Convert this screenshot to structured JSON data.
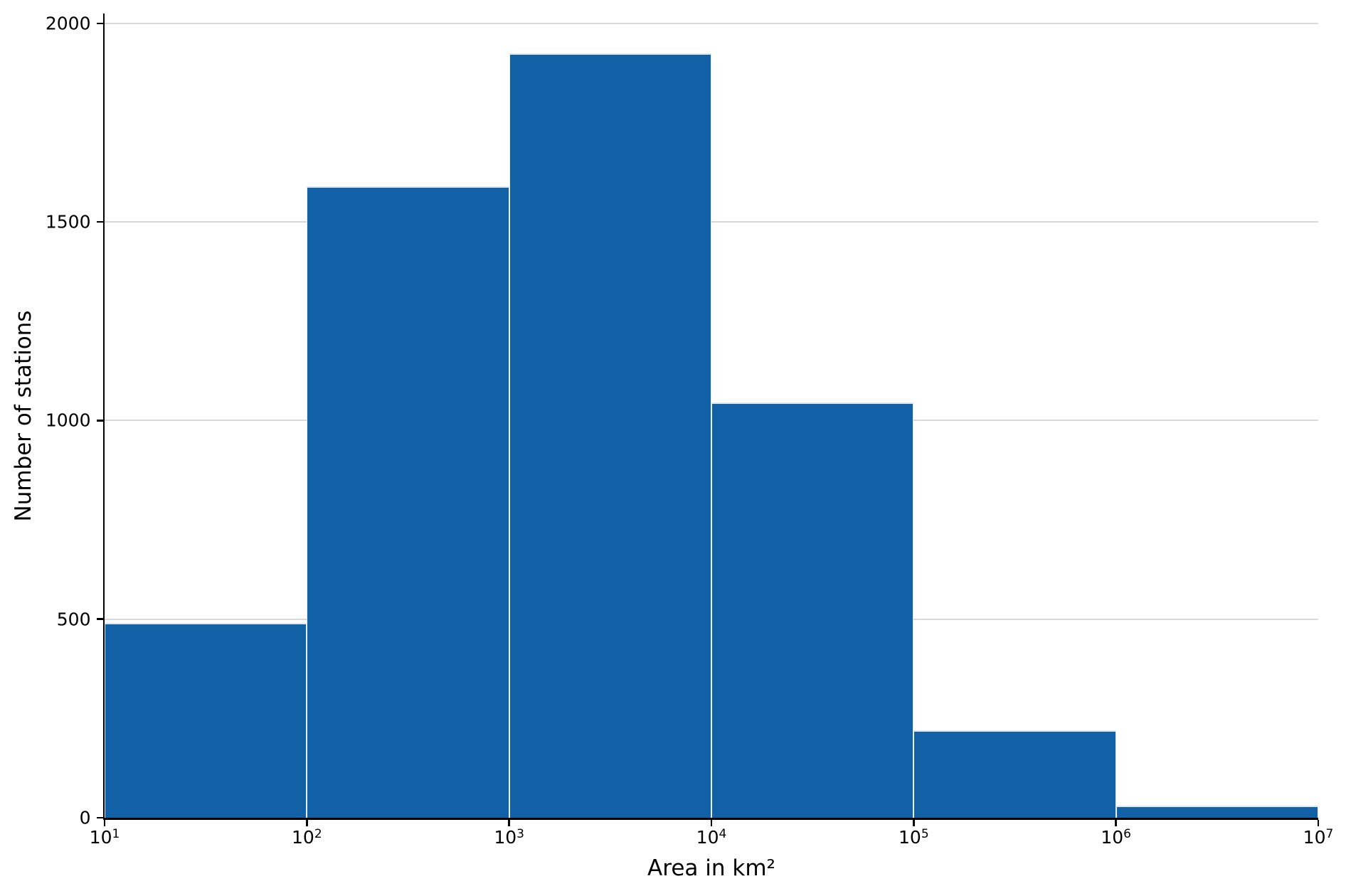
{
  "figure": {
    "background_color": "#ffffff",
    "title": ""
  },
  "chart_data": {
    "type": "bar",
    "subtype": "histogram",
    "title": "",
    "xlabel": "Area in km²",
    "ylabel": "Number of stations",
    "x_scale": "log10",
    "bin_edges": [
      10,
      100,
      1000,
      10000,
      100000,
      1000000,
      10000000
    ],
    "bin_edge_exponents": [
      1,
      2,
      3,
      4,
      5,
      6,
      7
    ],
    "values": [
      490,
      1590,
      1925,
      1045,
      220,
      30
    ],
    "x_tick_labels": [
      "10¹",
      "10²",
      "10³",
      "10⁴",
      "10⁵",
      "10⁶",
      "10⁷"
    ],
    "y_ticks": [
      0,
      500,
      1000,
      1500,
      2000
    ],
    "xlim_exponents": [
      1,
      7
    ],
    "ylim": [
      0,
      2025
    ],
    "grid": "horizontal-only",
    "legend": "none",
    "colors": {
      "bar_fill": "#1261a6",
      "bar_edge": "#ffffff",
      "grid_color": "#d9d9d9",
      "axis_color": "#000000",
      "text_color": "#000000"
    }
  }
}
